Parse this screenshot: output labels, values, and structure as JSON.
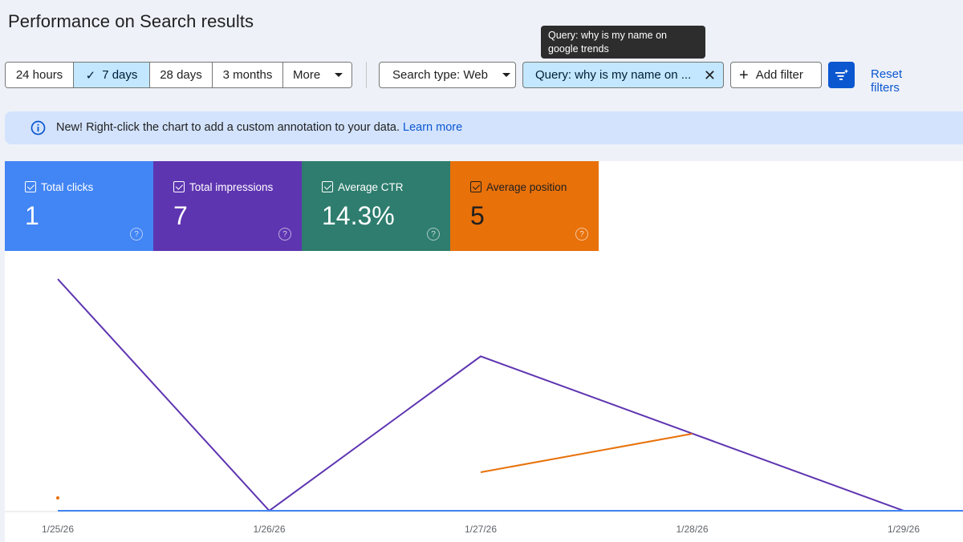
{
  "page": {
    "title": "Performance on Search results"
  },
  "tooltip": {
    "text": "Query: why is my name on google trends"
  },
  "date_range": {
    "options": [
      "24 hours",
      "7 days",
      "28 days",
      "3 months",
      "More"
    ],
    "selected": "7 days"
  },
  "filters": {
    "search_type_label": "Search type: Web",
    "query_label": "Query: why is my name on ...",
    "add_filter_label": "Add filter",
    "reset_label": "Reset filters"
  },
  "banner": {
    "message": "New! Right-click the chart to add a custom annotation to your data.",
    "link_text": "Learn more"
  },
  "metrics": [
    {
      "label": "Total clicks",
      "value": "1",
      "color": "#4285f4",
      "checked": true
    },
    {
      "label": "Total impressions",
      "value": "7",
      "color": "#5e35b1",
      "checked": true
    },
    {
      "label": "Average CTR",
      "value": "14.3%",
      "color": "#2e7d6e",
      "checked": true
    },
    {
      "label": "Average position",
      "value": "5",
      "color": "#e8710a",
      "checked": true
    }
  ],
  "chart_data": {
    "type": "line",
    "categories": [
      "1/25/26",
      "1/26/26",
      "1/27/26",
      "1/28/26",
      "1/29/26"
    ],
    "series": [
      {
        "name": "Total impressions",
        "color": "#5e35b1",
        "values": [
          3,
          0,
          2,
          1,
          0
        ]
      },
      {
        "name": "Total clicks",
        "color": "#4285f4",
        "values": [
          0,
          0,
          0,
          0,
          0
        ]
      },
      {
        "name": "Average position",
        "color": "#e8710a",
        "values": [
          null,
          null,
          1,
          2,
          null
        ]
      }
    ],
    "extra_marks": [
      {
        "series": "Average position",
        "category": "1/25/26",
        "note": "isolated point"
      }
    ]
  }
}
